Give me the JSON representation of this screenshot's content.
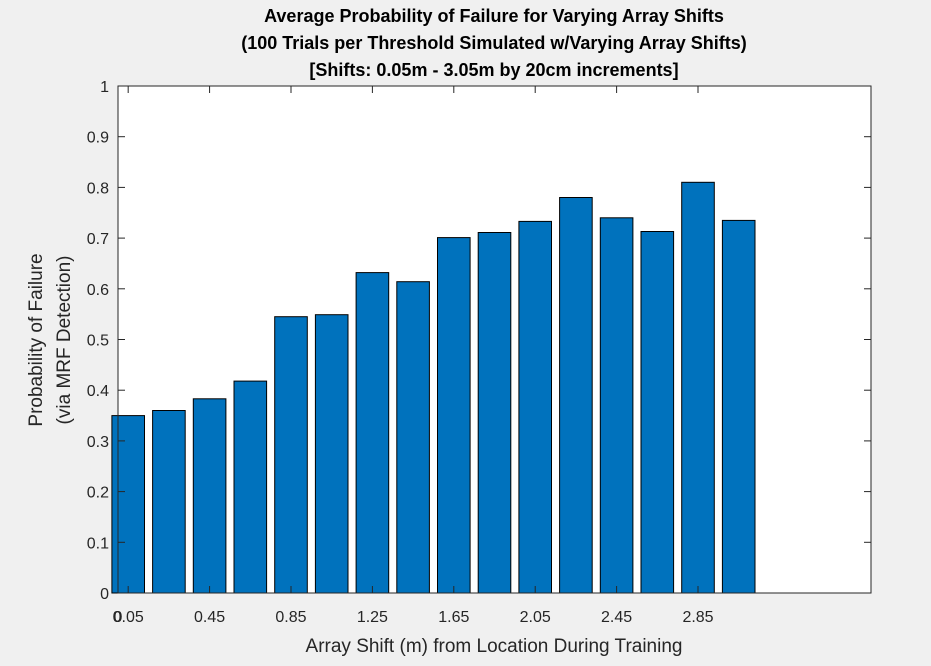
{
  "chart_data": {
    "type": "bar",
    "title": [
      "Average Probability of Failure for Varying Array Shifts",
      "(100 Trials per Threshold Simulated w/Varying Array Shifts)",
      "[Shifts: 0.05m - 3.05m by 20cm increments]"
    ],
    "xlabel": "Array Shift (m) from Location During Training",
    "ylabel": [
      "Probability of Failure",
      "(via MRF Detection)"
    ],
    "x": [
      0.05,
      0.25,
      0.45,
      0.65,
      0.85,
      1.05,
      1.25,
      1.45,
      1.65,
      1.85,
      2.05,
      2.25,
      2.45,
      2.65,
      2.85,
      3.05
    ],
    "values": [
      0.35,
      0.36,
      0.383,
      0.418,
      0.545,
      0.549,
      0.632,
      0.614,
      0.701,
      0.711,
      0.733,
      0.78,
      0.74,
      0.713,
      0.81,
      0.735
    ],
    "xlim": [
      0,
      3.7
    ],
    "ylim": [
      0,
      1
    ],
    "xticks": [
      "0",
      "0.05",
      "0.45",
      "0.85",
      "1.25",
      "1.65",
      "2.05",
      "2.45",
      "2.85"
    ],
    "xtick_values": [
      0,
      0.05,
      0.45,
      0.85,
      1.25,
      1.65,
      2.05,
      2.45,
      2.85
    ],
    "yticks": [
      "0",
      "0.1",
      "0.2",
      "0.3",
      "0.4",
      "0.5",
      "0.6",
      "0.7",
      "0.8",
      "0.9",
      "1"
    ],
    "ytick_values": [
      0,
      0.1,
      0.2,
      0.3,
      0.4,
      0.5,
      0.6,
      0.7,
      0.8,
      0.9,
      1
    ],
    "bar_color": "#0072bd",
    "grid": false,
    "legend": "none"
  }
}
